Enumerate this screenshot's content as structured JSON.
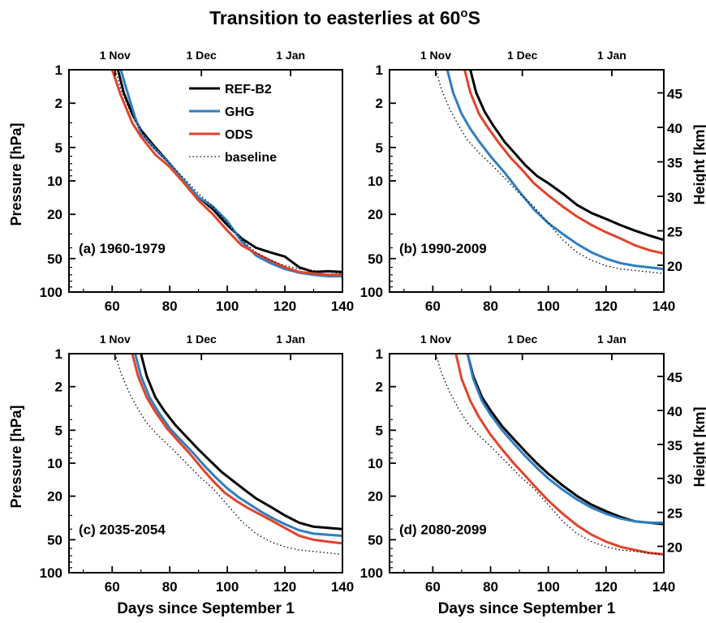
{
  "figure": {
    "title_main": "Transition to easterlies at 60",
    "title_sup": "o",
    "title_end": "S"
  },
  "chart_data": [
    {
      "type": "line",
      "panel_label": "(a) 1960-1979",
      "xlabel": "",
      "ylabel": "Pressure [hPa]",
      "y2label": "",
      "xlim": [
        45,
        140
      ],
      "ylim": [
        1,
        100
      ],
      "yscale": "log",
      "y_inverted": true,
      "xticks": [
        60,
        80,
        100,
        120,
        140
      ],
      "yticks": [
        1,
        2,
        5,
        10,
        20,
        50,
        100
      ],
      "top_ticks": {
        "labels": [
          "1 Nov",
          "1 Dec",
          "1 Jan"
        ],
        "x": [
          61,
          91,
          122
        ]
      },
      "legend": {
        "position": "top-right",
        "entries": [
          "REF-B2",
          "GHG",
          "ODS",
          "baseline"
        ]
      },
      "series": [
        {
          "name": "REF-B2",
          "color": "#000000",
          "style": "solid",
          "x": [
            62,
            64,
            67,
            70,
            75,
            80,
            85,
            90,
            95,
            100,
            105,
            110,
            115,
            120,
            125,
            130,
            135,
            140
          ],
          "y": [
            1,
            1.6,
            2.5,
            3.5,
            5,
            7,
            10,
            14,
            18,
            25,
            33,
            40,
            44,
            48,
            60,
            66,
            65,
            66
          ]
        },
        {
          "name": "GHG",
          "color": "#2f7ec1",
          "style": "solid",
          "x": [
            63,
            65,
            68,
            70,
            75,
            80,
            85,
            90,
            95,
            100,
            105,
            110,
            115,
            120,
            125,
            130,
            135,
            140
          ],
          "y": [
            1,
            1.5,
            2.7,
            3.7,
            5.2,
            7,
            10,
            14,
            17,
            23,
            35,
            47,
            55,
            62,
            67,
            70,
            72,
            72
          ]
        },
        {
          "name": "ODS",
          "color": "#e2432b",
          "style": "solid",
          "x": [
            60,
            63,
            67,
            70,
            75,
            80,
            85,
            90,
            95,
            100,
            105,
            110,
            115,
            120,
            125,
            130,
            135,
            140
          ],
          "y": [
            1,
            1.7,
            3,
            4,
            5.8,
            7.5,
            10.5,
            15,
            20,
            28,
            38,
            45,
            52,
            60,
            66,
            68,
            70,
            70
          ]
        },
        {
          "name": "baseline",
          "color": "#000000",
          "style": "dotted",
          "x": [
            61,
            63,
            66,
            69,
            72,
            76,
            80,
            85,
            90,
            95,
            100,
            105,
            110,
            115,
            120,
            125,
            130,
            135,
            140
          ],
          "y": [
            1,
            1.5,
            2.3,
            3.2,
            4.3,
            5.6,
            7,
            9.5,
            13,
            17,
            24,
            34,
            44,
            52,
            58,
            62,
            64,
            66,
            68
          ]
        }
      ]
    },
    {
      "type": "line",
      "panel_label": "(b) 1990-2009",
      "xlabel": "",
      "ylabel": "",
      "y2label": "Height [km]",
      "xlim": [
        45,
        140
      ],
      "ylim": [
        1,
        100
      ],
      "yscale": "log",
      "y_inverted": true,
      "xticks": [
        60,
        80,
        100,
        120,
        140
      ],
      "yticks": [
        1,
        2,
        5,
        10,
        20,
        50,
        100
      ],
      "y2ticks": [
        20,
        25,
        30,
        35,
        40,
        45
      ],
      "top_ticks": {
        "labels": [
          "1 Nov",
          "1 Dec",
          "1 Jan"
        ],
        "x": [
          61,
          91,
          122
        ]
      },
      "series": [
        {
          "name": "REF-B2",
          "color": "#000000",
          "style": "solid",
          "x": [
            73,
            75,
            78,
            81,
            85,
            88,
            92,
            96,
            100,
            105,
            110,
            115,
            120,
            125,
            130,
            135,
            140
          ],
          "y": [
            1,
            1.6,
            2.4,
            3.2,
            4.5,
            5.5,
            7.2,
            9,
            10.5,
            13,
            16.5,
            19.5,
            22,
            25,
            28,
            31,
            34
          ]
        },
        {
          "name": "GHG",
          "color": "#2f7ec1",
          "style": "solid",
          "x": [
            65,
            67,
            70,
            73,
            76,
            80,
            85,
            90,
            95,
            100,
            105,
            110,
            115,
            120,
            125,
            130,
            135,
            140
          ],
          "y": [
            1,
            1.6,
            2.5,
            3.4,
            4.4,
            6,
            8.5,
            12.5,
            18,
            24,
            30,
            37,
            44,
            50,
            55,
            58,
            60,
            62
          ]
        },
        {
          "name": "ODS",
          "color": "#e2432b",
          "style": "solid",
          "x": [
            71,
            73,
            76,
            79,
            83,
            87,
            91,
            95,
            100,
            105,
            110,
            115,
            120,
            125,
            130,
            135,
            140
          ],
          "y": [
            1,
            1.6,
            2.5,
            3.3,
            4.6,
            6.2,
            8,
            10.5,
            13.5,
            17,
            21,
            25,
            29,
            33,
            38,
            42,
            45
          ]
        },
        {
          "name": "baseline",
          "color": "#000000",
          "style": "dotted",
          "x": [
            61,
            63,
            66,
            69,
            72,
            76,
            80,
            85,
            90,
            95,
            100,
            105,
            110,
            115,
            120,
            125,
            130,
            135,
            140
          ],
          "y": [
            1,
            1.5,
            2.3,
            3.2,
            4.3,
            5.6,
            7,
            9.5,
            13,
            17,
            24,
            34,
            44,
            52,
            58,
            62,
            64,
            66,
            68
          ]
        }
      ]
    },
    {
      "type": "line",
      "panel_label": "(c) 2035-2054",
      "xlabel": "Days since September 1",
      "ylabel": "Pressure [hPa]",
      "y2label": "",
      "xlim": [
        45,
        140
      ],
      "ylim": [
        1,
        100
      ],
      "yscale": "log",
      "y_inverted": true,
      "xticks": [
        60,
        80,
        100,
        120,
        140
      ],
      "yticks": [
        1,
        2,
        5,
        10,
        20,
        50,
        100
      ],
      "top_ticks": {
        "labels": [
          "1 Nov",
          "1 Dec",
          "1 Jan"
        ],
        "x": [
          61,
          91,
          122
        ]
      },
      "series": [
        {
          "name": "REF-B2",
          "color": "#000000",
          "style": "solid",
          "x": [
            70,
            72,
            75,
            78,
            82,
            86,
            90,
            94,
            98,
            102,
            106,
            110,
            115,
            120,
            125,
            130,
            135,
            140
          ],
          "y": [
            1,
            1.6,
            2.5,
            3.3,
            4.5,
            5.8,
            7.5,
            9.5,
            12,
            14.5,
            17.5,
            21,
            25,
            30,
            35,
            38,
            39,
            40
          ]
        },
        {
          "name": "GHG",
          "color": "#2f7ec1",
          "style": "solid",
          "x": [
            68,
            70,
            73,
            76,
            80,
            84,
            88,
            92,
            96,
            100,
            104,
            108,
            112,
            116,
            120,
            125,
            130,
            135,
            140
          ],
          "y": [
            1,
            1.6,
            2.5,
            3.4,
            4.8,
            6.2,
            8,
            10.5,
            13.5,
            17,
            20.5,
            24,
            28,
            32,
            36,
            41,
            44,
            45,
            46
          ]
        },
        {
          "name": "ODS",
          "color": "#e2432b",
          "style": "solid",
          "x": [
            67,
            69,
            72,
            75,
            79,
            83,
            87,
            91,
            95,
            99,
            103,
            107,
            111,
            115,
            120,
            125,
            130,
            135,
            140
          ],
          "y": [
            1,
            1.6,
            2.5,
            3.4,
            4.8,
            6.3,
            8.2,
            11,
            14.5,
            18.5,
            22,
            25.5,
            29,
            33,
            39,
            46,
            50,
            52,
            54
          ]
        },
        {
          "name": "baseline",
          "color": "#000000",
          "style": "dotted",
          "x": [
            61,
            63,
            66,
            69,
            72,
            76,
            80,
            85,
            90,
            95,
            100,
            105,
            110,
            115,
            120,
            125,
            130,
            135,
            140
          ],
          "y": [
            1,
            1.5,
            2.3,
            3.2,
            4.3,
            5.6,
            7,
            9.5,
            13,
            17,
            24,
            34,
            44,
            52,
            58,
            62,
            64,
            66,
            68
          ]
        }
      ]
    },
    {
      "type": "line",
      "panel_label": "(d) 2080-2099",
      "xlabel": "Days since September 1",
      "ylabel": "",
      "y2label": "Height [km]",
      "xlim": [
        45,
        140
      ],
      "ylim": [
        1,
        100
      ],
      "yscale": "log",
      "y_inverted": true,
      "xticks": [
        60,
        80,
        100,
        120,
        140
      ],
      "yticks": [
        1,
        2,
        5,
        10,
        20,
        50,
        100
      ],
      "y2ticks": [
        20,
        25,
        30,
        35,
        40,
        45
      ],
      "top_ticks": {
        "labels": [
          "1 Nov",
          "1 Dec",
          "1 Jan"
        ],
        "x": [
          61,
          91,
          122
        ]
      },
      "series": [
        {
          "name": "REF-B2",
          "color": "#000000",
          "style": "solid",
          "x": [
            72,
            74,
            77,
            80,
            84,
            88,
            92,
            96,
            100,
            105,
            110,
            115,
            120,
            125,
            130,
            135,
            140
          ],
          "y": [
            1,
            1.6,
            2.5,
            3.3,
            4.6,
            6,
            7.8,
            10,
            12.5,
            16,
            20,
            24,
            27.5,
            31,
            34,
            35,
            36
          ]
        },
        {
          "name": "GHG",
          "color": "#2f7ec1",
          "style": "solid",
          "x": [
            72,
            74,
            77,
            80,
            84,
            88,
            92,
            96,
            100,
            105,
            110,
            115,
            120,
            125,
            130,
            135,
            140
          ],
          "y": [
            1,
            1.7,
            2.7,
            3.6,
            5,
            6.6,
            8.6,
            11,
            13.8,
            17.5,
            21.5,
            25.5,
            29,
            32,
            34,
            35,
            35
          ]
        },
        {
          "name": "ODS",
          "color": "#e2432b",
          "style": "solid",
          "x": [
            68,
            70,
            73,
            76,
            80,
            84,
            88,
            92,
            96,
            100,
            105,
            110,
            115,
            120,
            125,
            130,
            135,
            140
          ],
          "y": [
            1,
            1.7,
            2.7,
            3.8,
            5.5,
            7.5,
            10,
            13,
            17,
            22,
            29,
            37,
            45,
            52,
            58,
            62,
            66,
            68
          ]
        },
        {
          "name": "baseline",
          "color": "#000000",
          "style": "dotted",
          "x": [
            61,
            63,
            66,
            69,
            72,
            76,
            80,
            85,
            90,
            95,
            100,
            105,
            110,
            115,
            120,
            125,
            130,
            135,
            140
          ],
          "y": [
            1,
            1.5,
            2.3,
            3.2,
            4.3,
            5.6,
            7,
            9.5,
            13,
            17,
            24,
            34,
            44,
            52,
            58,
            62,
            64,
            66,
            68
          ]
        }
      ]
    }
  ]
}
